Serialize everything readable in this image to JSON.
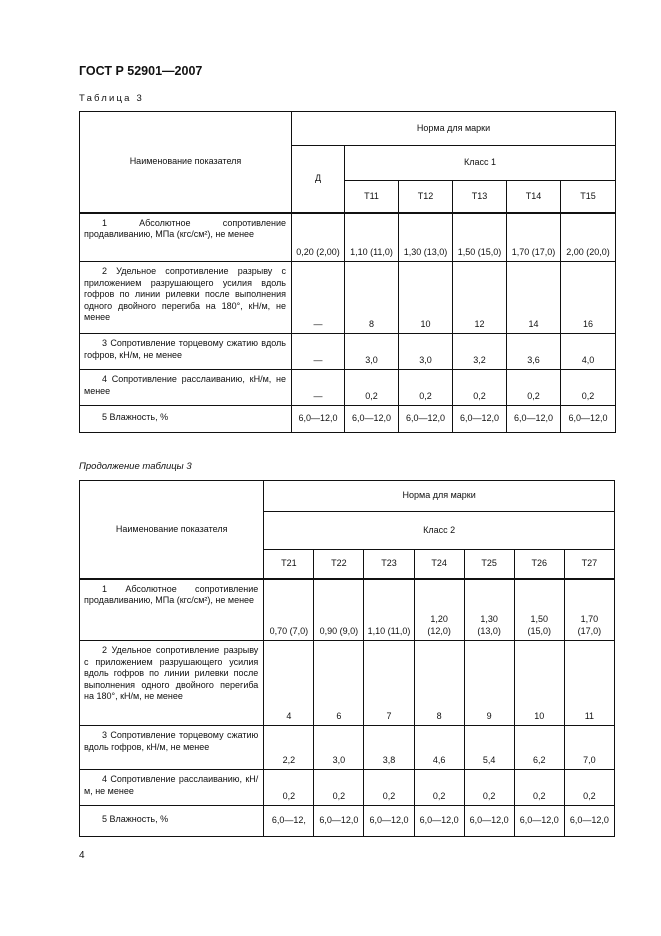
{
  "header": {
    "doc_title": "ГОСТ Р 52901—2007"
  },
  "table1": {
    "caption": "Таблица 3",
    "col_name": "Наименование показателя",
    "norm_header": "Норма для марки",
    "d_header": "Д",
    "class_header": "Класс 1",
    "marks": [
      "Т11",
      "Т12",
      "Т13",
      "Т14",
      "Т15"
    ],
    "rows": [
      {
        "label": "1 Абсолютное сопротивление продавливанию, МПа (кгс/см²), не менее",
        "d": "0,20 (2,00)",
        "values": [
          "1,10 (11,0)",
          "1,30 (13,0)",
          "1,50 (15,0)",
          "1,70 (17,0)",
          "2,00 (20,0)"
        ]
      },
      {
        "label": "2 Удельное сопротивление разрыву с приложением разрушающего усилия вдоль гофров по линии рилевки после выполнения одного двойного перегиба на 180°, кН/м, не менее",
        "d": "—",
        "values": [
          "8",
          "10",
          "12",
          "14",
          "16"
        ]
      },
      {
        "label": "3 Сопротивление торцевому сжатию вдоль гофров, кН/м, не менее",
        "d": "—",
        "values": [
          "3,0",
          "3,0",
          "3,2",
          "3,6",
          "4,0"
        ]
      },
      {
        "label": "4 Сопротивление расслаиванию, кН/м, не менее",
        "d": "—",
        "values": [
          "0,2",
          "0,2",
          "0,2",
          "0,2",
          "0,2"
        ]
      },
      {
        "label": "5 Влажность, %",
        "d": "6,0—12,0",
        "values": [
          "6,0—12,0",
          "6,0—12,0",
          "6,0—12,0",
          "6,0—12,0",
          "6,0—12,0"
        ]
      }
    ]
  },
  "table2": {
    "caption": "Продолжение таблицы 3",
    "col_name": "Наименование показателя",
    "norm_header": "Норма для марки",
    "class_header": "Класс 2",
    "marks": [
      "Т21",
      "Т22",
      "Т23",
      "Т24",
      "Т25",
      "Т26",
      "Т27"
    ],
    "rows": [
      {
        "label": "1 Абсолютное сопротивление продавливанию, МПа (кгс/см²), не менее",
        "values": [
          "0,70 (7,0)",
          "0,90 (9,0)",
          "1,10 (11,0)",
          "1,20 (12,0)",
          "1,30 (13,0)",
          "1,50 (15,0)",
          "1,70 (17,0)"
        ]
      },
      {
        "label": "2 Удельное сопротивление разрыву с приложением разрушающего усилия вдоль гофров по линии рилевки после выполнения одного двойного перегиба на 180°, кН/м, не менее",
        "values": [
          "4",
          "6",
          "7",
          "8",
          "9",
          "10",
          "11"
        ]
      },
      {
        "label": "3 Сопротивление торцевому сжатию вдоль гофров, кН/м, не менее",
        "values": [
          "2,2",
          "3,0",
          "3,8",
          "4,6",
          "5,4",
          "6,2",
          "7,0"
        ]
      },
      {
        "label": "4 Сопротивление расслаиванию, кН/м, не менее",
        "values": [
          "0,2",
          "0,2",
          "0,2",
          "0,2",
          "0,2",
          "0,2",
          "0,2"
        ]
      },
      {
        "label": "5 Влажность, %",
        "values": [
          "6,0—12,",
          "6,0—12,0",
          "6,0—12,0",
          "6,0—12,0",
          "6,0—12,0",
          "6,0—12,0",
          "6,0—12,0"
        ]
      }
    ]
  },
  "footer": {
    "page_number": "4"
  }
}
